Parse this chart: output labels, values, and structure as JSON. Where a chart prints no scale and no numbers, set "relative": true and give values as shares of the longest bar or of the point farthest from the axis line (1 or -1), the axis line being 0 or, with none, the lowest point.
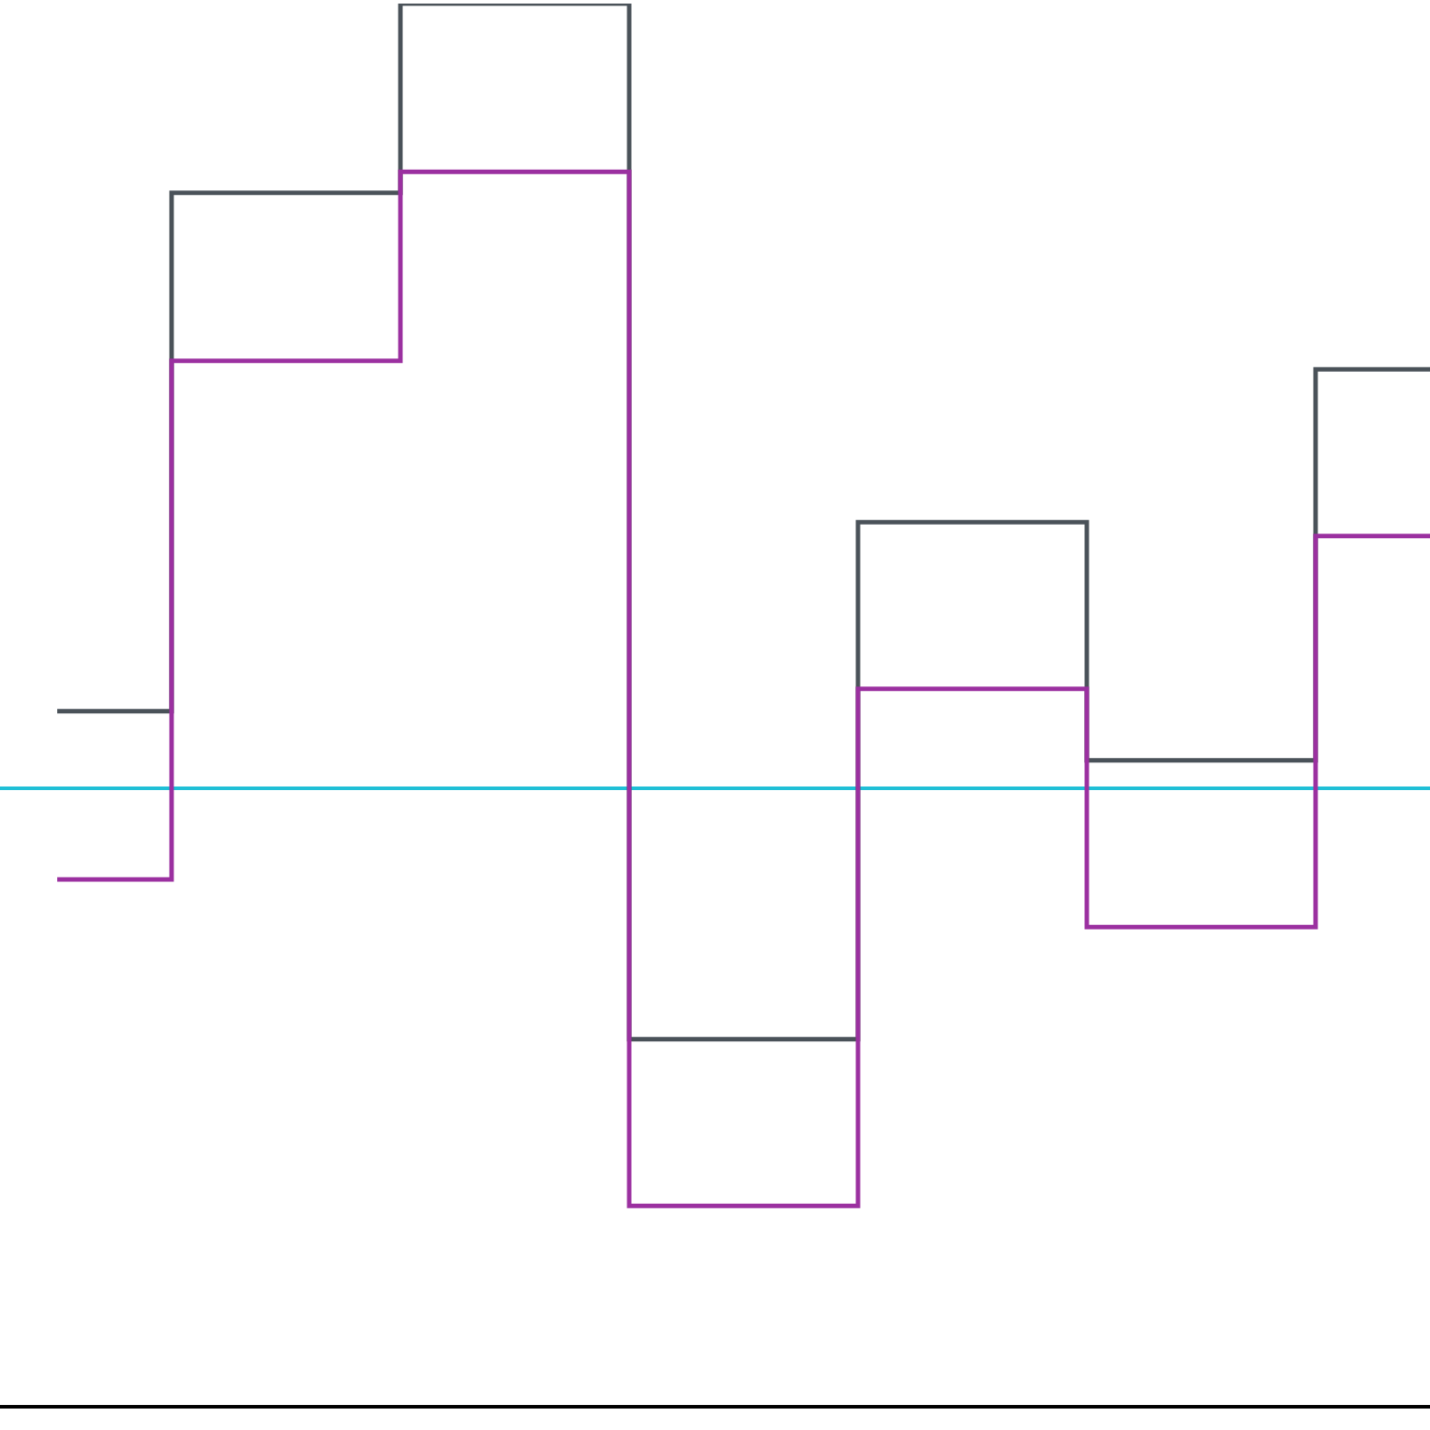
{
  "chart_data": {
    "type": "step",
    "relative": true,
    "categories": [
      null,
      null,
      null,
      null,
      null,
      null,
      null
    ],
    "series": [
      {
        "color": "#4a5259",
        "values": [
          0.495,
          0.865,
          1.0,
          0.261,
          0.63,
          0.46,
          0.739
        ]
      },
      {
        "color": "#9b30a0",
        "values": [
          0.375,
          0.745,
          0.88,
          0.142,
          0.511,
          0.341,
          0.62
        ]
      }
    ],
    "ref_lines": [
      {
        "axis": "y",
        "value": 0.44,
        "color": "#1fbfd6"
      }
    ]
  }
}
